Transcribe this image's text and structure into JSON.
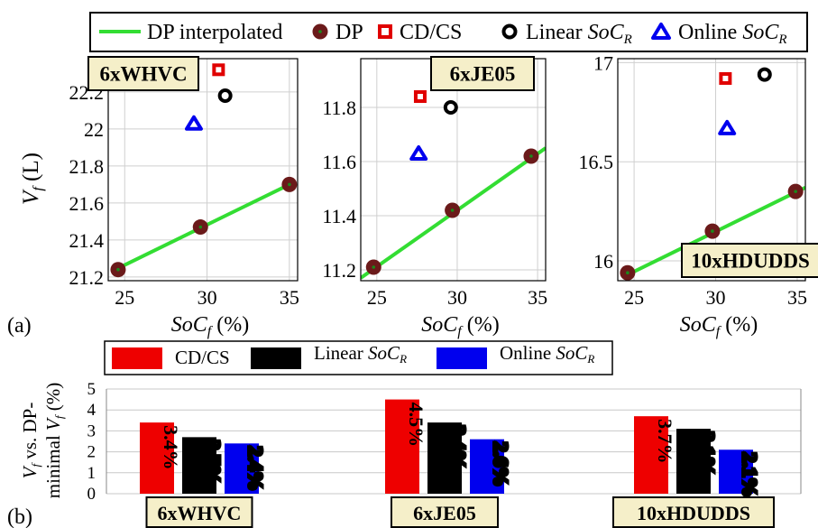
{
  "panel_labels": {
    "a": "(a)",
    "b": "(b)"
  },
  "legend_top": {
    "items": [
      {
        "label": "DP interpolated",
        "marker": "line",
        "color": "#33dd33"
      },
      {
        "label": "DP",
        "marker": "filled-circle",
        "color": "#6b1a1a"
      },
      {
        "label": "CD/CS",
        "marker": "square",
        "color": "#e00000"
      },
      {
        "label": "Linear",
        "italic_suffix": "SoC",
        "sub": "R",
        "marker": "open-circle",
        "color": "#000000"
      },
      {
        "label": "Online",
        "italic_suffix": "SoC",
        "sub": "R",
        "marker": "triangle",
        "color": "#0000ee"
      }
    ]
  },
  "legend_bottom": {
    "items": [
      {
        "label": "CD/CS",
        "color": "#ee0000"
      },
      {
        "label": "Linear",
        "italic_suffix": "SoC",
        "sub": "R",
        "color": "#000000"
      },
      {
        "label": "Online",
        "italic_suffix": "SoC",
        "sub": "R",
        "color": "#0000ee"
      }
    ]
  },
  "top_ylabel": {
    "main": "V",
    "sub": "f",
    "unit": " (L)"
  },
  "top_xlabel": {
    "main": "SoC",
    "sub": "f",
    "unit": " (%)"
  },
  "bottom_ylabel": {
    "line1_main": "V",
    "line1_sub": "f",
    "line1_rest": " vs. DP-",
    "line2_pre": "minimal ",
    "line2_main": "V",
    "line2_sub": "f",
    "line2_rest": " (%)"
  },
  "chart_data": [
    {
      "type": "scatter",
      "title": "6xWHVC",
      "xlim": [
        24,
        35.5
      ],
      "ylim": [
        21.18,
        22.38
      ],
      "xticks": [
        25,
        30,
        35
      ],
      "yticks": [
        21.2,
        21.4,
        21.6,
        21.8,
        22,
        22.2
      ],
      "ytick_labels": [
        "21.2",
        "21.4",
        "21.6",
        "21.8",
        "22",
        "22.2"
      ],
      "series": [
        {
          "name": "DP interpolated",
          "type": "line",
          "x": [
            24.2,
            35.0
          ],
          "y": [
            21.23,
            21.7
          ]
        },
        {
          "name": "DP",
          "x": [
            24.6,
            29.6,
            35.0
          ],
          "y": [
            21.24,
            21.47,
            21.7
          ]
        },
        {
          "name": "CD/CS",
          "x": [
            30.7
          ],
          "y": [
            22.32
          ]
        },
        {
          "name": "Linear SoC_R",
          "x": [
            31.1
          ],
          "y": [
            22.18
          ]
        },
        {
          "name": "Online SoC_R",
          "x": [
            29.2
          ],
          "y": [
            22.03
          ]
        }
      ]
    },
    {
      "type": "scatter",
      "title": "6xJE05",
      "xlim": [
        24,
        35.5
      ],
      "ylim": [
        11.16,
        11.98
      ],
      "xticks": [
        25,
        30,
        35
      ],
      "yticks": [
        11.2,
        11.4,
        11.6,
        11.8
      ],
      "ytick_labels": [
        "11.2",
        "11.4",
        "11.6",
        "11.8"
      ],
      "series": [
        {
          "name": "DP interpolated",
          "type": "line",
          "x": [
            24.0,
            35.5
          ],
          "y": [
            11.17,
            11.65
          ]
        },
        {
          "name": "DP",
          "x": [
            24.8,
            29.7,
            34.6
          ],
          "y": [
            11.21,
            11.42,
            11.62
          ]
        },
        {
          "name": "CD/CS",
          "x": [
            27.7
          ],
          "y": [
            11.84
          ]
        },
        {
          "name": "Linear SoC_R",
          "x": [
            29.6
          ],
          "y": [
            11.8
          ]
        },
        {
          "name": "Online SoC_R",
          "x": [
            27.6
          ],
          "y": [
            11.63
          ]
        }
      ]
    },
    {
      "type": "scatter",
      "title": "10xHDUDDS",
      "xlim": [
        24,
        35.5
      ],
      "ylim": [
        15.9,
        17.02
      ],
      "xticks": [
        25,
        30,
        35
      ],
      "yticks": [
        16,
        16.5,
        17
      ],
      "ytick_labels": [
        "16",
        "16.5",
        "17"
      ],
      "series": [
        {
          "name": "DP interpolated",
          "type": "line",
          "x": [
            24.6,
            35.5
          ],
          "y": [
            15.93,
            16.37
          ]
        },
        {
          "name": "DP",
          "x": [
            24.6,
            29.8,
            34.9
          ],
          "y": [
            15.94,
            16.15,
            16.35
          ]
        },
        {
          "name": "CD/CS",
          "x": [
            30.6
          ],
          "y": [
            16.92
          ]
        },
        {
          "name": "Linear SoC_R",
          "x": [
            33.0
          ],
          "y": [
            16.94
          ]
        },
        {
          "name": "Online SoC_R",
          "x": [
            30.7
          ],
          "y": [
            16.67
          ]
        }
      ]
    },
    {
      "type": "bar",
      "categories": [
        "6xWHVC",
        "6xJE05",
        "10xHDUDDS"
      ],
      "ylim": [
        0,
        5
      ],
      "yticks": [
        0,
        1,
        2,
        3,
        4,
        5
      ],
      "series": [
        {
          "name": "CD/CS",
          "values": [
            3.4,
            4.5,
            3.7
          ],
          "labels": [
            "3.4%",
            "4.5%",
            "3.7%"
          ]
        },
        {
          "name": "Linear SoC_R",
          "values": [
            2.7,
            3.4,
            3.1
          ],
          "labels": [
            "2.7%",
            "3.4%",
            "3.1%"
          ]
        },
        {
          "name": "Online SoC_R",
          "values": [
            2.4,
            2.6,
            2.1
          ],
          "labels": [
            "2.4%",
            "2.6%",
            "2.1%"
          ]
        }
      ]
    }
  ]
}
